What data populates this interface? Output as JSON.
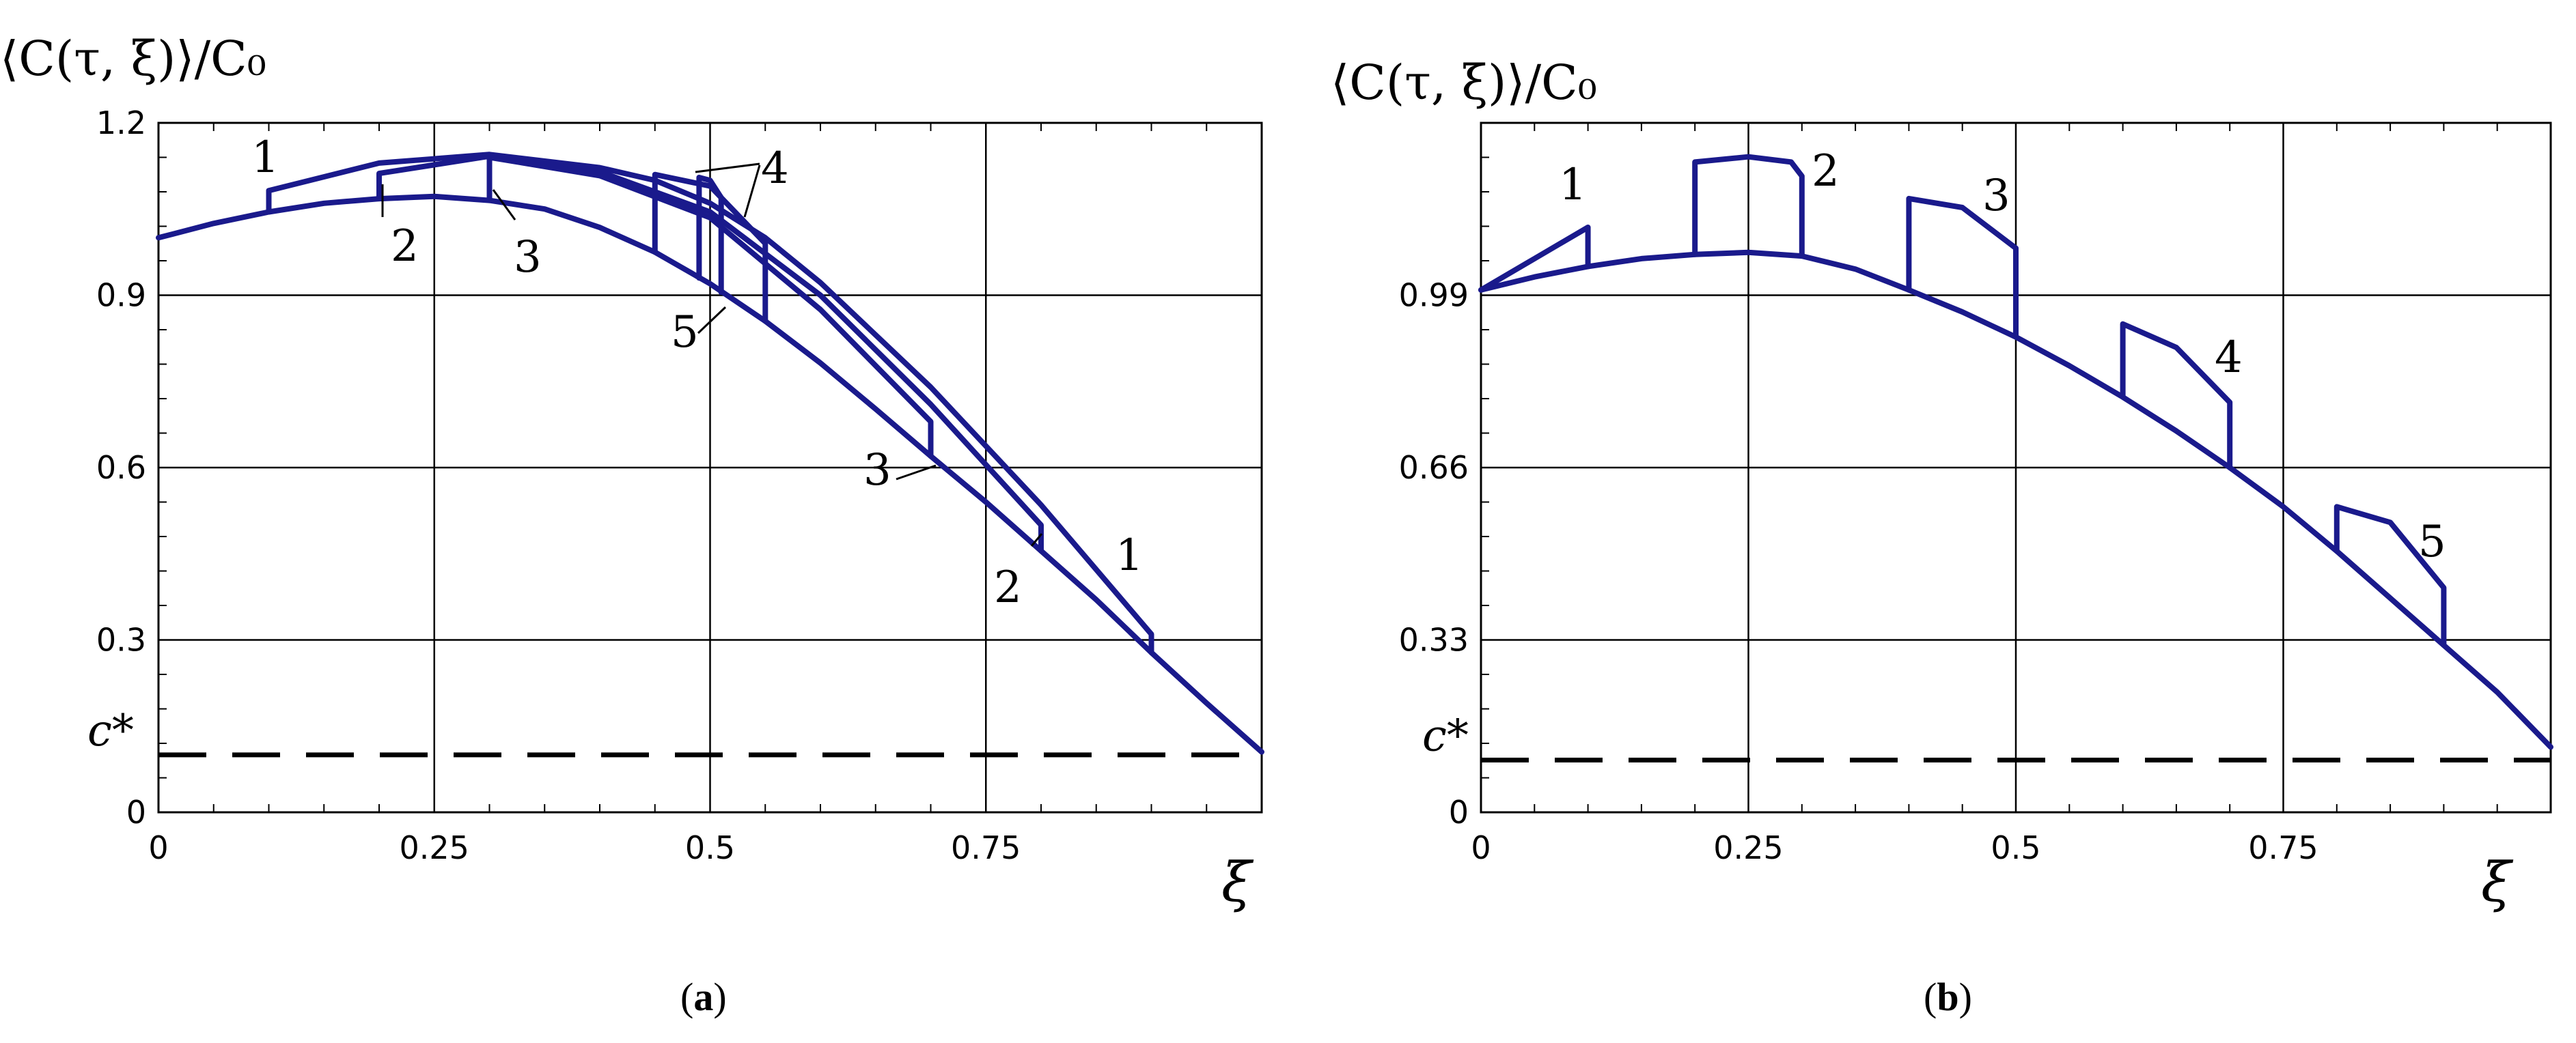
{
  "chart_data": [
    {
      "panel": "a",
      "caption": {
        "open": "(",
        "letter": "a",
        "close": ")"
      },
      "type": "line",
      "title": "⟨C(τ, ξ)⟩/C₀",
      "xlabel": "ξ",
      "xlim": [
        0,
        1
      ],
      "ylim": [
        0,
        1.2
      ],
      "xticks": [
        0,
        0.25,
        0.5,
        0.75
      ],
      "xtick_labels": [
        "0",
        "0.25",
        "0.5",
        "0.75"
      ],
      "yticks": [
        0,
        0.3,
        0.6,
        0.9,
        1.2
      ],
      "ytick_labels": [
        "0",
        "0.3",
        "0.6",
        "0.9",
        "1.2"
      ],
      "grid": true,
      "threshold": {
        "label": "c*",
        "value": 0.1
      },
      "curve_labels": [
        "1",
        "2",
        "3",
        "4",
        "5",
        "3",
        "2",
        "1"
      ],
      "series": [
        {
          "points": [
            [
              0,
              1.0
            ],
            [
              0.05,
              1.025
            ],
            [
              0.1,
              1.045
            ],
            [
              0.15,
              1.06
            ],
            [
              0.2,
              1.068
            ],
            [
              0.25,
              1.072
            ],
            [
              0.3,
              1.065
            ],
            [
              0.35,
              1.05
            ],
            [
              0.4,
              1.018
            ],
            [
              0.45,
              0.975
            ],
            [
              0.5,
              0.92
            ],
            [
              0.55,
              0.855
            ],
            [
              0.6,
              0.782
            ],
            [
              0.65,
              0.702
            ],
            [
              0.7,
              0.62
            ],
            [
              0.75,
              0.54
            ],
            [
              0.8,
              0.455
            ],
            [
              0.85,
              0.37
            ],
            [
              0.9,
              0.278
            ],
            [
              0.95,
              0.19
            ],
            [
              1.0,
              0.105
            ]
          ]
        },
        {
          "points": [
            [
              0.1,
              1.045
            ],
            [
              0.1,
              1.082
            ],
            [
              0.2,
              1.13
            ],
            [
              0.3,
              1.145
            ],
            [
              0.4,
              1.122
            ],
            [
              0.45,
              1.1
            ],
            [
              0.5,
              1.06
            ],
            [
              0.55,
              1.0
            ],
            [
              0.6,
              0.922
            ],
            [
              0.7,
              0.74
            ],
            [
              0.8,
              0.535
            ],
            [
              0.9,
              0.31
            ],
            [
              0.9,
              0.278
            ]
          ]
        },
        {
          "points": [
            [
              0.2,
              1.068
            ],
            [
              0.2,
              1.112
            ],
            [
              0.3,
              1.142
            ],
            [
              0.4,
              1.115
            ],
            [
              0.5,
              1.045
            ],
            [
              0.6,
              0.9
            ],
            [
              0.7,
              0.71
            ],
            [
              0.8,
              0.5
            ],
            [
              0.8,
              0.455
            ]
          ]
        },
        {
          "points": [
            [
              0.3,
              1.065
            ],
            [
              0.3,
              1.14
            ],
            [
              0.4,
              1.108
            ],
            [
              0.5,
              1.035
            ],
            [
              0.6,
              0.875
            ],
            [
              0.7,
              0.68
            ],
            [
              0.7,
              0.62
            ]
          ]
        },
        {
          "points": [
            [
              0.45,
              0.975
            ],
            [
              0.45,
              1.11
            ],
            [
              0.5,
              1.09
            ],
            [
              0.55,
              0.99
            ],
            [
              0.55,
              0.855
            ]
          ]
        },
        {
          "points": [
            [
              0.49,
              0.93
            ],
            [
              0.49,
              1.105
            ],
            [
              0.5,
              1.1
            ],
            [
              0.51,
              1.07
            ],
            [
              0.51,
              0.905
            ]
          ]
        }
      ]
    },
    {
      "panel": "b",
      "caption": {
        "open": "(",
        "letter": "b",
        "close": ")"
      },
      "type": "line",
      "title": "⟨C(τ, ξ)⟩/C₀",
      "xlabel": "ξ",
      "xlim": [
        0,
        1
      ],
      "ylim": [
        0,
        1.32
      ],
      "xticks": [
        0,
        0.25,
        0.5,
        0.75
      ],
      "xtick_labels": [
        "0",
        "0.25",
        "0.5",
        "0.75"
      ],
      "yticks": [
        0,
        0.33,
        0.66,
        0.99
      ],
      "ytick_labels": [
        "0",
        "0.33",
        "0.66",
        "0.99"
      ],
      "grid": true,
      "threshold": {
        "label": "c*",
        "value": 0.1
      },
      "curve_labels": [
        "1",
        "2",
        "3",
        "4",
        "5"
      ],
      "series": [
        {
          "points": [
            [
              0,
              1.0
            ],
            [
              0.05,
              1.025
            ],
            [
              0.1,
              1.045
            ],
            [
              0.15,
              1.06
            ],
            [
              0.2,
              1.068
            ],
            [
              0.25,
              1.072
            ],
            [
              0.3,
              1.065
            ],
            [
              0.35,
              1.04
            ],
            [
              0.4,
              1.0
            ],
            [
              0.45,
              0.958
            ],
            [
              0.5,
              0.91
            ],
            [
              0.55,
              0.855
            ],
            [
              0.6,
              0.795
            ],
            [
              0.65,
              0.73
            ],
            [
              0.7,
              0.66
            ],
            [
              0.75,
              0.585
            ],
            [
              0.8,
              0.5
            ],
            [
              0.85,
              0.41
            ],
            [
              0.9,
              0.32
            ],
            [
              0.95,
              0.23
            ],
            [
              1.0,
              0.125
            ]
          ]
        },
        {
          "points": [
            [
              0,
              1.0
            ],
            [
              0.05,
              1.06
            ],
            [
              0.1,
              1.12
            ],
            [
              0.1,
              1.045
            ]
          ]
        },
        {
          "points": [
            [
              0.2,
              1.068
            ],
            [
              0.2,
              1.245
            ],
            [
              0.25,
              1.255
            ],
            [
              0.29,
              1.245
            ],
            [
              0.3,
              1.218
            ],
            [
              0.3,
              1.065
            ]
          ]
        },
        {
          "points": [
            [
              0.4,
              1.0
            ],
            [
              0.4,
              1.175
            ],
            [
              0.45,
              1.158
            ],
            [
              0.5,
              1.08
            ],
            [
              0.5,
              0.91
            ]
          ]
        },
        {
          "points": [
            [
              0.6,
              0.795
            ],
            [
              0.6,
              0.935
            ],
            [
              0.65,
              0.89
            ],
            [
              0.7,
              0.785
            ],
            [
              0.7,
              0.66
            ]
          ]
        },
        {
          "points": [
            [
              0.8,
              0.5
            ],
            [
              0.8,
              0.585
            ],
            [
              0.85,
              0.555
            ],
            [
              0.9,
              0.43
            ],
            [
              0.9,
              0.32
            ]
          ]
        }
      ]
    }
  ]
}
